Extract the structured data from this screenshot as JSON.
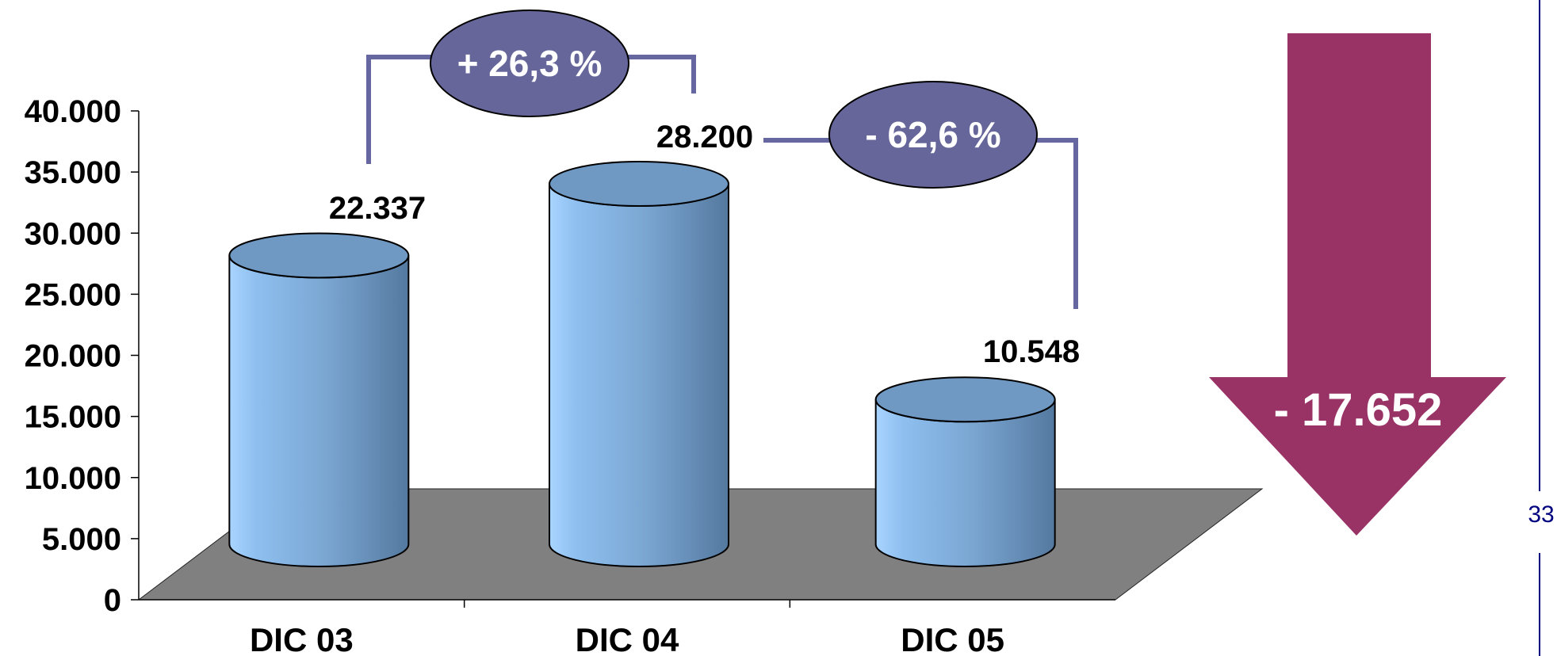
{
  "chart_data": {
    "type": "bar",
    "title": "",
    "xlabel": "",
    "ylabel": "",
    "categories": [
      "DIC 03",
      "DIC 04",
      "DIC 05"
    ],
    "values": [
      22337,
      28200,
      10548
    ],
    "value_labels": [
      "22.337",
      "28.200",
      "10.548"
    ],
    "yticks": [
      0,
      5000,
      10000,
      15000,
      20000,
      25000,
      30000,
      35000,
      40000
    ],
    "ytick_labels": [
      "0",
      "5.000",
      "10.000",
      "15.000",
      "20.000",
      "25.000",
      "30.000",
      "35.000",
      "40.000"
    ],
    "ylim": [
      0,
      40000
    ],
    "grid": false,
    "legend": "none",
    "annotations": {
      "change_03_04": "+ 26,3 %",
      "change_04_05": "- 62,6 %",
      "total_change": "- 17.652"
    }
  },
  "page_number": "33",
  "colors": {
    "bar_light": "#9cc9f5",
    "bar_dark": "#5a7fa6",
    "bar_top": "#6f98c2",
    "floor": "#808080",
    "bubble": "#66669a",
    "arrow": "#993366",
    "page_line": "#000080",
    "text": "#000000"
  }
}
